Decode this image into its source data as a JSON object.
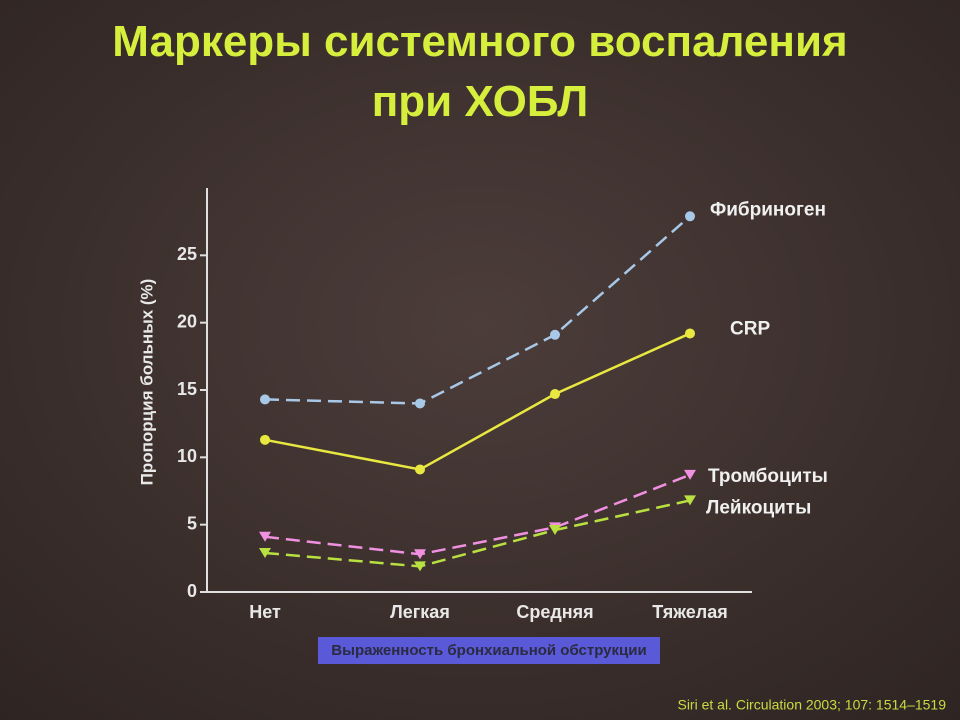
{
  "chart_data": {
    "type": "line",
    "title": "Маркеры системного воспаления при ХОБЛ",
    "x_label": "Выраженность бронхиальной обструкции",
    "y_label": "Пропорция больных (%)",
    "source": "Siri et al. Circulation 2003; 107: 1514–1519",
    "categories": [
      "Нет",
      "Легкая",
      "Средняя",
      "Тяжелая"
    ],
    "series": [
      {
        "name": "Фибриноген",
        "color": "#a8c8e8",
        "dashed": true,
        "marker": "circle",
        "values": [
          14.3,
          14.0,
          19.1,
          27.9
        ]
      },
      {
        "name": "CRP",
        "color": "#e8e840",
        "dashed": false,
        "marker": "circle",
        "values": [
          11.3,
          9.1,
          14.7,
          19.2
        ]
      },
      {
        "name": "Тромбоциты",
        "color": "#f090e0",
        "dashed": true,
        "marker": "triangle",
        "values": [
          4.1,
          2.8,
          4.8,
          8.7
        ]
      },
      {
        "name": "Лейкоциты",
        "color": "#b8e040",
        "dashed": true,
        "marker": "triangle",
        "values": [
          2.9,
          1.9,
          4.6,
          6.8
        ]
      }
    ],
    "ylim": [
      0,
      30
    ],
    "yticks": [
      0,
      5,
      10,
      15,
      20,
      25
    ]
  }
}
